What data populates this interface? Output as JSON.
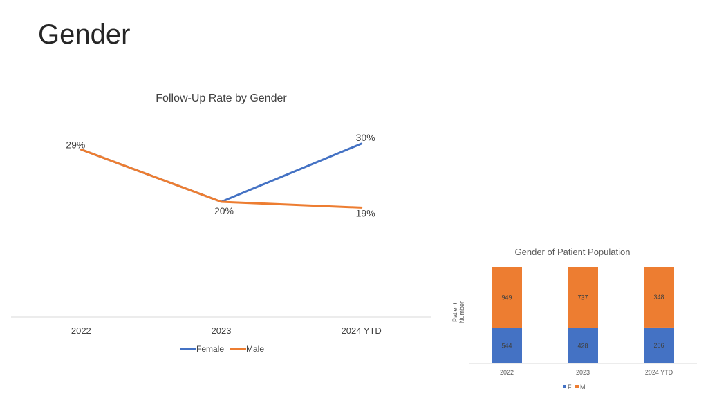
{
  "slide": {
    "title": "Gender"
  },
  "colors": {
    "female": "#4472C4",
    "male": "#ED7D31",
    "axis": "#D9D9D9"
  },
  "chart_data": [
    {
      "type": "line",
      "title": "Follow-Up Rate by Gender",
      "categories": [
        "2022",
        "2023",
        "2024 YTD"
      ],
      "series": [
        {
          "name": "Female",
          "values": [
            29,
            20,
            30
          ],
          "labels": [
            "29%",
            "",
            "30%"
          ]
        },
        {
          "name": "Male",
          "values": [
            29,
            20,
            19
          ],
          "labels": [
            "",
            "20%",
            "19%"
          ]
        }
      ],
      "ylim": [
        0,
        40
      ],
      "legend": "bottom",
      "grid": false
    },
    {
      "type": "bar",
      "stacked": true,
      "title": "Gender of Patient Population",
      "ylabel": "Patient Number",
      "categories": [
        "2022",
        "2023",
        "2024 YTD"
      ],
      "series": [
        {
          "name": "F",
          "values": [
            544,
            428,
            206
          ]
        },
        {
          "name": "M",
          "values": [
            949,
            737,
            348
          ]
        }
      ],
      "normalized": true,
      "legend": "bottom",
      "grid": false
    }
  ]
}
